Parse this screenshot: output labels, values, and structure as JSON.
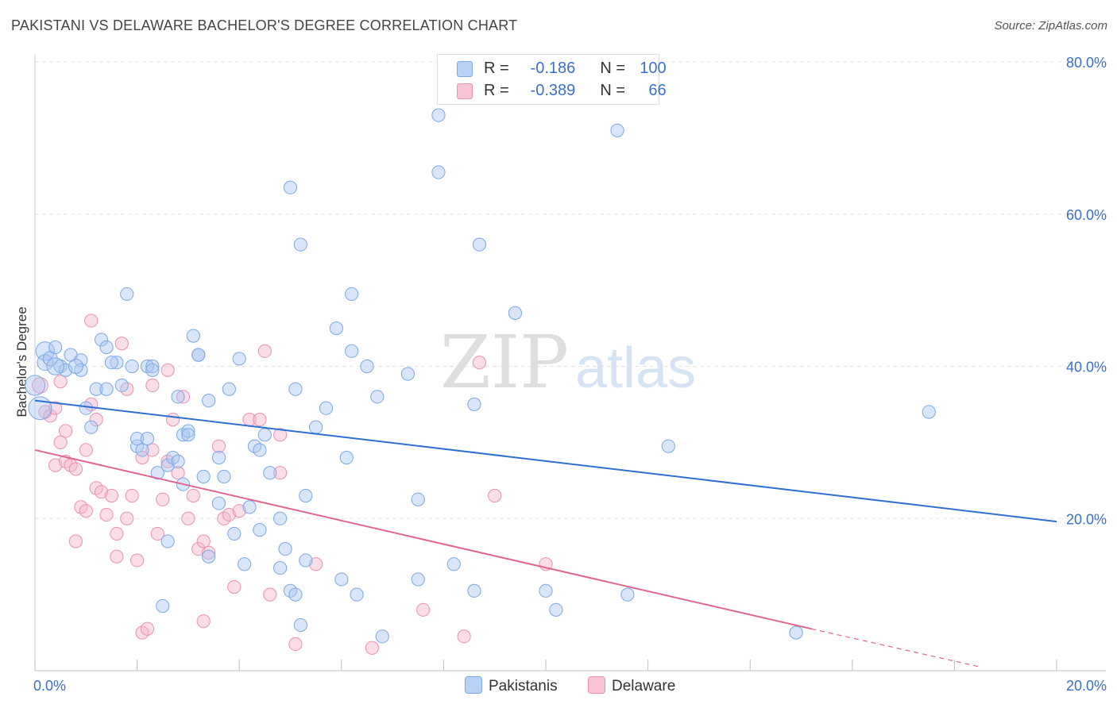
{
  "title": "PAKISTANI VS DELAWARE BACHELOR'S DEGREE CORRELATION CHART",
  "source": "Source: ZipAtlas.com",
  "watermark": {
    "zip": "ZIP",
    "atlas": "atlas"
  },
  "legend": {
    "r_label": "R =",
    "n_label": "N =",
    "rows": [
      {
        "name": "Pakistanis",
        "r": "-0.186",
        "n": "100",
        "color": "#7aa7e8",
        "fill": "#b9d1f5"
      },
      {
        "name": "Delaware",
        "r": "-0.389",
        "n": "66",
        "color": "#ec8fb0",
        "fill": "#f8c3d4"
      }
    ]
  },
  "chart_data": {
    "type": "scatter",
    "xlabel": "",
    "ylabel": "Bachelor's Degree",
    "xlim": [
      0,
      20
    ],
    "ylim": [
      0,
      80
    ],
    "x_tick_labels": [
      {
        "value": 0,
        "label": "0.0%"
      },
      {
        "value": 20,
        "label": "20.0%"
      }
    ],
    "y_tick_labels": [
      {
        "value": 20,
        "label": "20.0%"
      },
      {
        "value": 40,
        "label": "40.0%"
      },
      {
        "value": 60,
        "label": "60.0%"
      },
      {
        "value": 80,
        "label": "80.0%"
      }
    ],
    "grid": true,
    "legend_position": "top-center",
    "series": [
      {
        "name": "Pakistanis",
        "color": "#7aa7e8",
        "trend_color": "#2d6fd1",
        "trend": {
          "x0": 0,
          "y0": 35.5,
          "x1": 20,
          "y1": 19.6
        },
        "points": [
          [
            0.1,
            34.5,
            1.6
          ],
          [
            0.2,
            42,
            1.3
          ],
          [
            0.2,
            40.5,
            1.1
          ],
          [
            0.3,
            41,
            1
          ],
          [
            0.4,
            42.5,
            0.9
          ],
          [
            0.5,
            40,
            0.9
          ],
          [
            0.6,
            39.5,
            0.9
          ],
          [
            0.7,
            41.5,
            0.9
          ],
          [
            0.9,
            40.8,
            0.9
          ],
          [
            0.9,
            39.5,
            0.9
          ],
          [
            1.0,
            34.5,
            0.9
          ],
          [
            1.1,
            32,
            0.9
          ],
          [
            1.2,
            37,
            0.9
          ],
          [
            1.3,
            43.5,
            0.9
          ],
          [
            1.4,
            42.5,
            0.9
          ],
          [
            1.4,
            37,
            0.9
          ],
          [
            1.6,
            40.5,
            0.9
          ],
          [
            1.7,
            37.5,
            0.9
          ],
          [
            1.8,
            49.5,
            0.9
          ],
          [
            1.9,
            40,
            0.9
          ],
          [
            2.0,
            29.5,
            0.9
          ],
          [
            2.0,
            30.5,
            0.9
          ],
          [
            2.2,
            30.5,
            0.9
          ],
          [
            2.2,
            40,
            0.9
          ],
          [
            2.3,
            40,
            0.9
          ],
          [
            2.4,
            26,
            0.9
          ],
          [
            2.5,
            8.5,
            0.9
          ],
          [
            2.6,
            27,
            0.9
          ],
          [
            2.6,
            17,
            0.9
          ],
          [
            2.7,
            28,
            0.9
          ],
          [
            2.8,
            36,
            0.9
          ],
          [
            2.8,
            27.5,
            0.9
          ],
          [
            2.9,
            24.5,
            0.9
          ],
          [
            2.9,
            31,
            0.9
          ],
          [
            3.0,
            31.5,
            0.9
          ],
          [
            3.1,
            44,
            0.9
          ],
          [
            3.2,
            41.5,
            0.9
          ],
          [
            3.2,
            41.5,
            0.9
          ],
          [
            3.3,
            25.5,
            0.9
          ],
          [
            3.4,
            35.5,
            0.9
          ],
          [
            3.4,
            15,
            0.9
          ],
          [
            3.6,
            28,
            0.9
          ],
          [
            3.7,
            25.5,
            0.9
          ],
          [
            3.8,
            37,
            0.9
          ],
          [
            3.9,
            18,
            0.9
          ],
          [
            4.0,
            41,
            0.9
          ],
          [
            4.1,
            14,
            0.9
          ],
          [
            4.2,
            21.5,
            0.9
          ],
          [
            4.3,
            29.5,
            0.9
          ],
          [
            4.4,
            29,
            0.9
          ],
          [
            4.4,
            18.5,
            0.9
          ],
          [
            4.6,
            26,
            0.9
          ],
          [
            4.8,
            13.5,
            0.9
          ],
          [
            4.8,
            20,
            0.9
          ],
          [
            4.9,
            16,
            0.9
          ],
          [
            5.0,
            10.5,
            0.9
          ],
          [
            5.1,
            10,
            0.9
          ],
          [
            5.2,
            6,
            0.9
          ],
          [
            5.3,
            14.5,
            0.9
          ],
          [
            5.0,
            63.5,
            0.9
          ],
          [
            5.1,
            37,
            0.9
          ],
          [
            5.2,
            56,
            0.9
          ],
          [
            5.3,
            23,
            0.9
          ],
          [
            5.7,
            34.5,
            0.9
          ],
          [
            5.9,
            45,
            0.9
          ],
          [
            6.0,
            12,
            0.9
          ],
          [
            6.2,
            42,
            0.9
          ],
          [
            6.2,
            49.5,
            0.9
          ],
          [
            6.3,
            10,
            0.9
          ],
          [
            6.5,
            40,
            0.9
          ],
          [
            6.7,
            36,
            0.9
          ],
          [
            6.8,
            4.5,
            0.9
          ],
          [
            7.3,
            39,
            0.9
          ],
          [
            7.5,
            12,
            0.9
          ],
          [
            7.5,
            22.5,
            0.9
          ],
          [
            7.9,
            65.5,
            0.9
          ],
          [
            7.9,
            73,
            0.9
          ],
          [
            8.2,
            14,
            0.9
          ],
          [
            8.6,
            10.5,
            0.9
          ],
          [
            8.6,
            35,
            0.9
          ],
          [
            8.7,
            56,
            0.9
          ],
          [
            9.4,
            47,
            0.9
          ],
          [
            10.0,
            10.5,
            0.9
          ],
          [
            10.2,
            8,
            0.9
          ],
          [
            11.6,
            10,
            0.9
          ],
          [
            11.4,
            71,
            0.9
          ],
          [
            12.4,
            29.5,
            0.9
          ],
          [
            14.9,
            5,
            0.9
          ],
          [
            17.5,
            34,
            0.9
          ],
          [
            0.0,
            37.5,
            1.4
          ],
          [
            0.4,
            40,
            1.2
          ],
          [
            0.8,
            40,
            1.0
          ],
          [
            1.5,
            40.5,
            0.9
          ],
          [
            2.1,
            29,
            0.9
          ],
          [
            2.3,
            39.5,
            0.9
          ],
          [
            3.0,
            31,
            0.9
          ],
          [
            3.6,
            22,
            0.9
          ],
          [
            4.5,
            31,
            0.9
          ],
          [
            5.5,
            32,
            0.9
          ],
          [
            6.1,
            28,
            0.9
          ]
        ]
      },
      {
        "name": "Delaware",
        "color": "#ec8fb0",
        "trend_color": "#e0658f",
        "trend": {
          "x0": 0,
          "y0": 29,
          "x1": 15.2,
          "y1": 5.5,
          "dash_to_x": 18.5,
          "dash_to_y": 0.5
        },
        "points": [
          [
            0.1,
            37.5,
            1.1
          ],
          [
            0.2,
            34,
            0.9
          ],
          [
            0.3,
            33.5,
            0.9
          ],
          [
            0.4,
            34.5,
            0.9
          ],
          [
            0.4,
            27,
            0.9
          ],
          [
            0.5,
            30,
            0.9
          ],
          [
            0.5,
            38,
            0.9
          ],
          [
            0.6,
            31.5,
            0.9
          ],
          [
            0.6,
            27.5,
            0.9
          ],
          [
            0.7,
            27,
            0.9
          ],
          [
            0.8,
            26.5,
            0.9
          ],
          [
            0.8,
            17,
            0.9
          ],
          [
            0.9,
            21.5,
            0.9
          ],
          [
            1.0,
            21,
            0.9
          ],
          [
            1.0,
            29,
            0.9
          ],
          [
            1.1,
            46,
            0.9
          ],
          [
            1.1,
            35,
            0.9
          ],
          [
            1.2,
            24,
            0.9
          ],
          [
            1.2,
            33,
            0.9
          ],
          [
            1.3,
            23.5,
            0.9
          ],
          [
            1.4,
            20.5,
            0.9
          ],
          [
            1.5,
            23,
            0.9
          ],
          [
            1.6,
            18,
            0.9
          ],
          [
            1.6,
            15,
            0.9
          ],
          [
            1.7,
            43,
            0.9
          ],
          [
            1.8,
            37,
            0.9
          ],
          [
            1.8,
            20,
            0.9
          ],
          [
            1.9,
            23,
            0.9
          ],
          [
            2.0,
            14.5,
            0.9
          ],
          [
            2.1,
            28,
            0.9
          ],
          [
            2.1,
            5,
            0.9
          ],
          [
            2.2,
            5.5,
            0.9
          ],
          [
            2.3,
            37.5,
            0.9
          ],
          [
            2.3,
            29,
            0.9
          ],
          [
            2.4,
            18,
            0.9
          ],
          [
            2.5,
            22.5,
            0.9
          ],
          [
            2.6,
            27.5,
            0.9
          ],
          [
            2.6,
            39.5,
            0.9
          ],
          [
            2.7,
            33,
            0.9
          ],
          [
            2.8,
            26,
            0.9
          ],
          [
            2.9,
            36,
            0.9
          ],
          [
            3.0,
            20,
            0.9
          ],
          [
            3.1,
            23,
            0.9
          ],
          [
            3.2,
            16,
            0.9
          ],
          [
            3.3,
            6.5,
            0.9
          ],
          [
            3.3,
            17,
            0.9
          ],
          [
            3.4,
            15.5,
            0.9
          ],
          [
            3.6,
            29.5,
            0.9
          ],
          [
            3.7,
            20,
            0.9
          ],
          [
            3.8,
            20.5,
            0.9
          ],
          [
            3.9,
            11,
            0.9
          ],
          [
            4.0,
            21,
            0.9
          ],
          [
            4.2,
            33,
            0.9
          ],
          [
            4.4,
            33,
            0.9
          ],
          [
            4.5,
            42,
            0.9
          ],
          [
            4.6,
            10,
            0.9
          ],
          [
            4.8,
            26,
            0.9
          ],
          [
            4.8,
            31,
            0.9
          ],
          [
            5.1,
            3.5,
            0.9
          ],
          [
            5.5,
            14,
            0.9
          ],
          [
            6.6,
            3,
            0.9
          ],
          [
            7.6,
            8,
            0.9
          ],
          [
            8.4,
            4.5,
            0.9
          ],
          [
            8.7,
            40.5,
            0.9
          ],
          [
            9.0,
            23,
            0.9
          ],
          [
            10.0,
            14,
            0.9
          ]
        ]
      }
    ]
  }
}
